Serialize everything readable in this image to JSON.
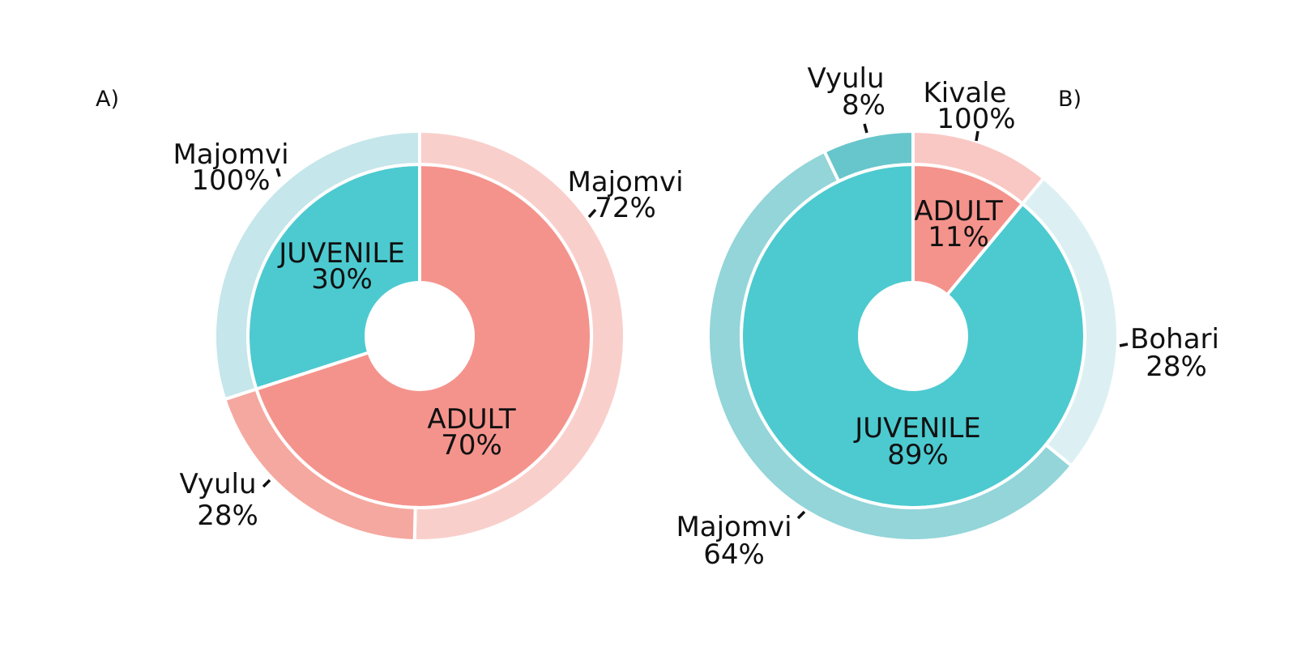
{
  "chart_data": [
    {
      "type": "pie",
      "variant": "nested-donut",
      "panel_label": "A)",
      "inner": [
        {
          "name": "ADULT",
          "value": 70,
          "label": "70%",
          "color": "#f4938c"
        },
        {
          "name": "JUVENILE",
          "value": 30,
          "label": "30%",
          "color": "#4ccad0"
        }
      ],
      "outer": [
        {
          "name": "Majomvi",
          "value": 72,
          "label": "72%",
          "parent": "ADULT",
          "color": "#f9cfcc"
        },
        {
          "name": "Vyulu",
          "value": 28,
          "label": "28%",
          "parent": "ADULT",
          "color": "#f5a89f"
        },
        {
          "name": "Majomvi",
          "value": 100,
          "label": "100%",
          "parent": "JUVENILE",
          "color": "#c5e6eb"
        }
      ]
    },
    {
      "type": "pie",
      "variant": "nested-donut",
      "panel_label": "B)",
      "inner": [
        {
          "name": "ADULT",
          "value": 11,
          "label": "11%",
          "color": "#f4938c"
        },
        {
          "name": "JUVENILE",
          "value": 89,
          "label": "89%",
          "color": "#4ccad0"
        }
      ],
      "outer": [
        {
          "name": "Kivale",
          "value": 100,
          "label": "100%",
          "parent": "ADULT",
          "color": "#f9c8c4"
        },
        {
          "name": "Bohari",
          "value": 28,
          "label": "28%",
          "parent": "JUVENILE",
          "color": "#dcf0f3"
        },
        {
          "name": "Majomvi",
          "value": 64,
          "label": "64%",
          "parent": "JUVENILE",
          "color": "#93d5d9"
        },
        {
          "name": "Vyulu",
          "value": 8,
          "label": "8%",
          "parent": "JUVENILE",
          "color": "#67c6cc"
        }
      ]
    }
  ]
}
